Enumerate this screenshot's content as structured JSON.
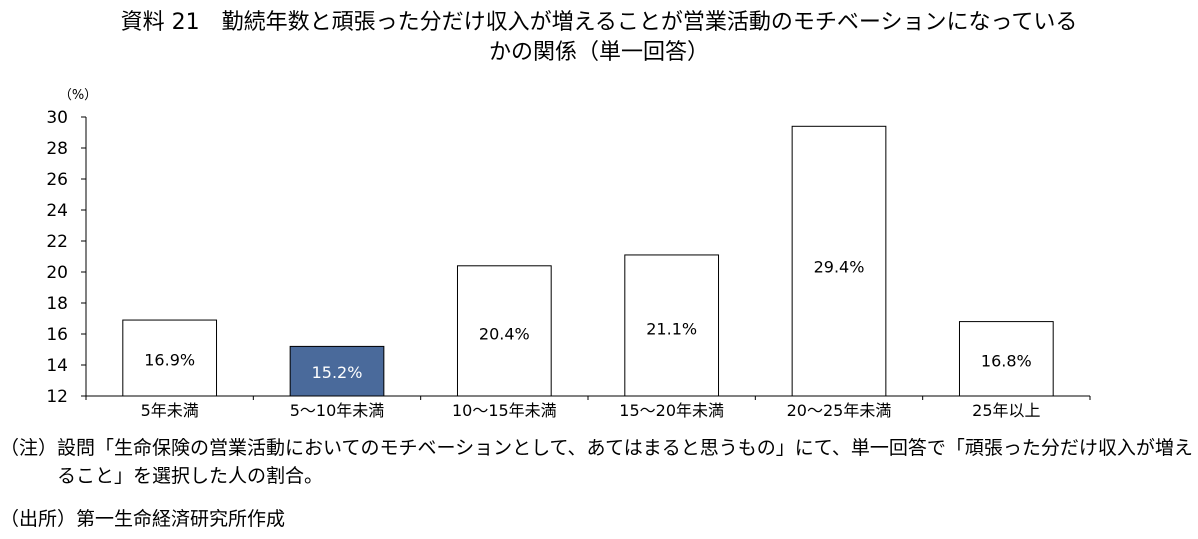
{
  "title": {
    "line1": "資料 21　勤続年数と頑張った分だけ収入が増えることが営業活動のモチベーションになっている",
    "line2": "かの関係（単一回答）"
  },
  "chart_data": {
    "type": "bar",
    "unit_label": "（%）",
    "categories": [
      "5年未満",
      "5～10年未満",
      "10～15年未満",
      "15～20年未満",
      "20～25年未満",
      "25年以上"
    ],
    "values": [
      16.9,
      15.2,
      20.4,
      21.1,
      29.4,
      16.8
    ],
    "data_labels": [
      "16.9%",
      "15.2%",
      "20.4%",
      "21.1%",
      "29.4%",
      "16.8%"
    ],
    "highlight_index": 1,
    "ylim": [
      12,
      30
    ],
    "yticks": [
      12,
      14,
      16,
      18,
      20,
      22,
      24,
      26,
      28,
      30
    ],
    "grid": false,
    "colors": {
      "bar_fill": "#ffffff",
      "bar_stroke": "#000000",
      "highlight_fill": "#4a6a9b",
      "highlight_text": "#ffffff"
    }
  },
  "notes": {
    "note_prefix": "（注）",
    "note_text": "設問「生命保険の営業活動においてのモチベーションとして、あてはまると思うもの」にて、単一回答で「頑張った分だけ収入が増えること」を選択した人の割合。",
    "source_prefix": "（出所）",
    "source_text": "第一生命経済研究所作成"
  }
}
